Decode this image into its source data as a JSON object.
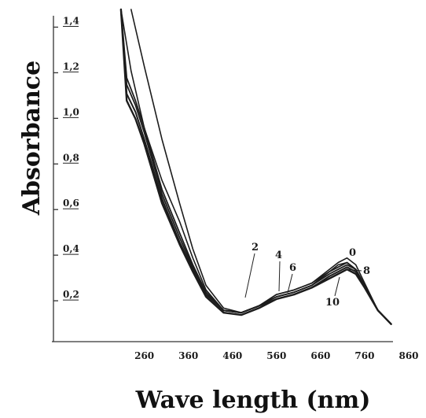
{
  "chart_data": {
    "type": "line",
    "title": "",
    "xlabel": "Wave length (nm)",
    "ylabel": "Absorbance",
    "xlim": [
      200,
      860
    ],
    "ylim": [
      0,
      1.45
    ],
    "x_ticks": [
      260,
      360,
      460,
      560,
      660,
      760,
      860
    ],
    "x_tick_labels": [
      "260",
      "360",
      "460",
      "560",
      "660",
      "760",
      "860"
    ],
    "y_ticks": [
      0.2,
      0.4,
      0.6,
      0.8,
      1.0,
      1.2,
      1.4
    ],
    "y_tick_labels": [
      "0,2",
      "0,4",
      "0,6",
      "0,8",
      "1,0",
      "1,2",
      "1,4"
    ],
    "grid": false,
    "series": [
      {
        "name": "0",
        "x": [
          230,
          260,
          300,
          340,
          370,
          400,
          440,
          480,
          520,
          560,
          600,
          640,
          680,
          700,
          720,
          740,
          760,
          790,
          820
        ],
        "y": [
          1.5,
          1.2,
          0.88,
          0.6,
          0.4,
          0.24,
          0.14,
          0.12,
          0.15,
          0.2,
          0.22,
          0.25,
          0.31,
          0.34,
          0.36,
          0.33,
          0.25,
          0.13,
          0.07
        ]
      },
      {
        "name": "2",
        "x": [
          207,
          230,
          260,
          300,
          340,
          370,
          400,
          440,
          480,
          520,
          560,
          600,
          640,
          680,
          700,
          720,
          740,
          760,
          790,
          820
        ],
        "y": [
          1.5,
          1.18,
          0.93,
          0.7,
          0.52,
          0.36,
          0.22,
          0.13,
          0.12,
          0.15,
          0.2,
          0.22,
          0.25,
          0.3,
          0.33,
          0.34,
          0.31,
          0.24,
          0.13,
          0.07
        ]
      },
      {
        "name": "4",
        "x": [
          207,
          220,
          240,
          260,
          300,
          340,
          370,
          400,
          440,
          480,
          520,
          560,
          600,
          640,
          680,
          700,
          720,
          740,
          760,
          790,
          820
        ],
        "y": [
          1.5,
          1.15,
          1.05,
          0.93,
          0.66,
          0.47,
          0.33,
          0.21,
          0.13,
          0.12,
          0.15,
          0.19,
          0.21,
          0.24,
          0.3,
          0.32,
          0.34,
          0.31,
          0.24,
          0.13,
          0.07
        ]
      },
      {
        "name": "6",
        "x": [
          207,
          220,
          240,
          260,
          300,
          340,
          370,
          400,
          440,
          480,
          520,
          560,
          600,
          640,
          680,
          700,
          720,
          740,
          760,
          790,
          820
        ],
        "y": [
          1.5,
          1.12,
          1.03,
          0.91,
          0.64,
          0.45,
          0.32,
          0.2,
          0.13,
          0.12,
          0.15,
          0.19,
          0.21,
          0.24,
          0.29,
          0.31,
          0.33,
          0.31,
          0.24,
          0.13,
          0.07
        ]
      },
      {
        "name": "8",
        "x": [
          207,
          220,
          240,
          260,
          300,
          340,
          370,
          400,
          440,
          480,
          520,
          560,
          600,
          640,
          680,
          700,
          720,
          740,
          760,
          790,
          820
        ],
        "y": [
          1.5,
          1.08,
          1.0,
          0.88,
          0.62,
          0.43,
          0.31,
          0.2,
          0.13,
          0.12,
          0.15,
          0.18,
          0.2,
          0.23,
          0.28,
          0.3,
          0.32,
          0.3,
          0.24,
          0.13,
          0.07
        ]
      },
      {
        "name": "10",
        "x": [
          207,
          220,
          240,
          260,
          300,
          340,
          370,
          400,
          440,
          480,
          520,
          560,
          600,
          640,
          680,
          700,
          720,
          740,
          760,
          790,
          820
        ],
        "y": [
          1.5,
          1.05,
          0.97,
          0.86,
          0.6,
          0.42,
          0.3,
          0.19,
          0.12,
          0.11,
          0.14,
          0.18,
          0.2,
          0.23,
          0.27,
          0.29,
          0.31,
          0.29,
          0.23,
          0.13,
          0.07
        ]
      }
    ]
  }
}
